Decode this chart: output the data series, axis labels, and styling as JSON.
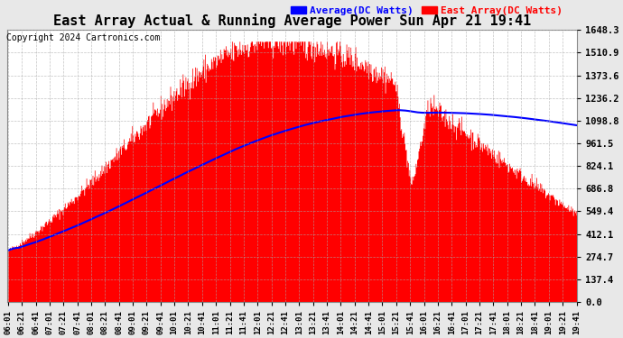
{
  "title": "East Array Actual & Running Average Power Sun Apr 21 19:41",
  "copyright": "Copyright 2024 Cartronics.com",
  "legend_avg": "Average(DC Watts)",
  "legend_east": "East Array(DC Watts)",
  "ymax": 1648.3,
  "yticks": [
    0.0,
    137.4,
    274.7,
    412.1,
    549.4,
    686.8,
    824.1,
    961.5,
    1098.8,
    1236.2,
    1373.6,
    1510.9,
    1648.3
  ],
  "background_color": "#e8e8e8",
  "plot_bg": "#ffffff",
  "bar_color": "#ff0000",
  "avg_color": "#0000ff",
  "title_color": "#000000",
  "copyright_color": "#000000",
  "legend_avg_color": "#0000ff",
  "legend_east_color": "#ff0000",
  "grid_color": "#aaaaaa",
  "xtick_labels": [
    "06:01",
    "06:21",
    "06:41",
    "07:01",
    "07:21",
    "07:41",
    "08:01",
    "08:21",
    "08:41",
    "09:01",
    "09:21",
    "09:41",
    "10:01",
    "10:21",
    "10:41",
    "11:01",
    "11:21",
    "11:41",
    "12:01",
    "12:21",
    "12:41",
    "13:01",
    "13:21",
    "13:41",
    "14:01",
    "14:21",
    "14:41",
    "15:01",
    "15:21",
    "15:41",
    "16:01",
    "16:21",
    "16:41",
    "17:01",
    "17:21",
    "17:41",
    "18:01",
    "18:21",
    "18:41",
    "19:01",
    "19:21",
    "19:41"
  ]
}
